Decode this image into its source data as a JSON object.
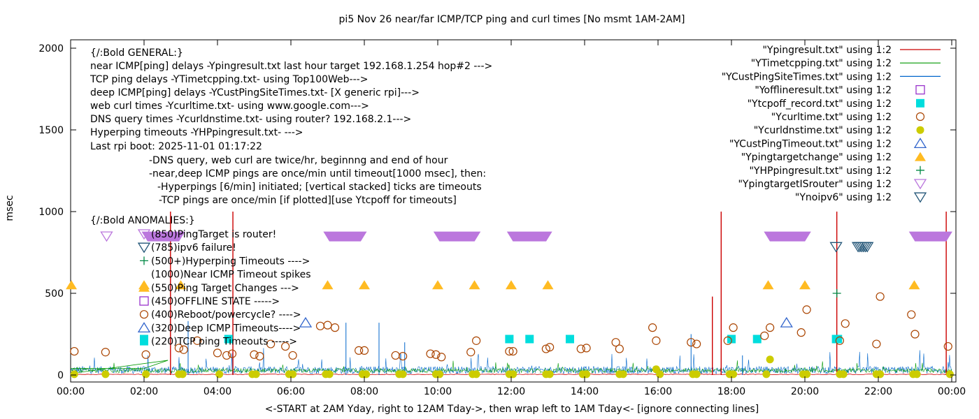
{
  "chart_data": {
    "type": "line",
    "title": "pi5 Nov 26  near/far ICMP/TCP ping and curl times [No msmt 1AM-2AM]",
    "xlabel": "<-START at 2AM Yday, right to 12AM Tday->, then wrap left to 1AM Tday<- [ignore connecting lines]",
    "ylabel": "msec",
    "xlim": [
      0,
      24
    ],
    "ylim": [
      0,
      2050
    ],
    "x_ticks": [
      "00:00",
      "02:00",
      "04:00",
      "06:00",
      "08:00",
      "10:00",
      "12:00",
      "14:00",
      "16:00",
      "18:00",
      "20:00",
      "22:00",
      "00:00"
    ],
    "y_ticks": [
      "0",
      "500",
      "1000",
      "1500",
      "2000"
    ],
    "grid": false,
    "legend_position": "top-right",
    "legend": [
      {
        "label": "\"Ypingresult.txt\" using 1:2",
        "kind": "line",
        "color": "#cc0000"
      },
      {
        "label": "\"YTimetcpping.txt\" using 1:2",
        "kind": "line",
        "color": "#009900"
      },
      {
        "label": "\"YCustPingSiteTimes.txt\" using 1:2",
        "kind": "line",
        "color": "#0066cc"
      },
      {
        "label": "\"Yofflineresult.txt\" using 1:2",
        "kind": "open-square",
        "color": "#9933cc"
      },
      {
        "label": "\"Ytcpoff_record.txt\" using 1:2",
        "kind": "filled-square",
        "color": "#00dddd"
      },
      {
        "label": "\"Ycurltime.txt\" using 1:2",
        "kind": "open-circle",
        "color": "#aa4400"
      },
      {
        "label": "\"Ycurldnstime.txt\" using 1:2",
        "kind": "filled-circle",
        "color": "#cccc00"
      },
      {
        "label": "\"YCustPingTimeout.txt\" using 1:2",
        "kind": "open-triangle-up",
        "color": "#3366cc"
      },
      {
        "label": "\"Ypingtargetchange\" using 1:2",
        "kind": "filled-triangle-up",
        "color": "#ffbb22"
      },
      {
        "label": "\"YHPpingresult.txt\" using 1:2",
        "kind": "plus",
        "color": "#008844"
      },
      {
        "label": "\"YpingtargetISrouter\" using 1:2",
        "kind": "open-triangle-down",
        "color": "#bb77dd"
      },
      {
        "label": "\"Ynoipv6\" using 1:2",
        "kind": "open-triangle-down",
        "color": "#225577"
      }
    ],
    "notes": [
      "{/:Bold GENERAL:}",
      "near ICMP[ping] delays -Ypingresult.txt last hour target 192.168.1.254 hop#2 --->",
      "TCP ping delays -YTimetcpping.txt- using Top100Web--->",
      "deep ICMP[ping] delays -YCustPingSiteTimes.txt- [X generic rpi]--->",
      "web curl times -Ycurltime.txt- using www.google.com--->",
      "DNS query times -Ycurldnstime.txt- using router? 192.168.2.1--->",
      "Hyperping timeouts -YHPpingresult.txt- --->",
      "Last rpi boot: 2025-11-01 01:17:22",
      "-DNS query, web curl are twice/hr, beginnng and end of hour",
      "-near,deep ICMP pings are once/min until timeout[1000 msec], then:",
      "-Hyperpings [6/min] initiated; [vertical stacked] ticks are timeouts",
      "-TCP pings are once/min [if plotted][use Ytcpoff for timeouts]",
      "{/:Bold ANOMALIES:}"
    ],
    "anomaly_keys": [
      {
        "symbol": "open-triangle-down",
        "color": "#bb77dd",
        "text": "(850)PingTarget is router!"
      },
      {
        "symbol": "open-triangle-down",
        "color": "#225577",
        "text": "(785)ipv6 failure!"
      },
      {
        "symbol": "plus",
        "color": "#008844",
        "text": "(500+)Hyperping Timeouts ---->"
      },
      {
        "symbol": "none",
        "color": "",
        "text": "(1000)Near ICMP Timeout spikes"
      },
      {
        "symbol": "filled-triangle-up",
        "color": "#ffbb22",
        "text": "(550)Ping Target Changes --->"
      },
      {
        "symbol": "open-square",
        "color": "#9933cc",
        "text": "(450)OFFLINE STATE ----->"
      },
      {
        "symbol": "open-circle",
        "color": "#aa4400",
        "text": "(400)Reboot/powercycle? ---->"
      },
      {
        "symbol": "open-triangle-up",
        "color": "#3366cc",
        "text": "(320)Deep ICMP Timeouts---->"
      },
      {
        "symbol": "filled-square",
        "color": "#00dddd",
        "text": "(220)TCP ping Timeouts ----->"
      }
    ],
    "series": [
      {
        "name": "\"Ypingresult.txt\" using 1:2",
        "kind": "spikes",
        "color": "#cc0000",
        "x": [
          2.72,
          4.42,
          17.48,
          17.72,
          20.87,
          23.85
        ],
        "y": [
          1000,
          1000,
          480,
          1000,
          1000,
          1000
        ]
      },
      {
        "name": "\"YCustPingTimeout.txt\" using 1:2",
        "kind": "open-triangle-up",
        "color": "#3366cc",
        "x": [
          6.4,
          19.5
        ],
        "y": [
          320,
          320
        ]
      },
      {
        "name": "\"Ypingtargetchange\" using 1:2",
        "kind": "filled-triangle-up",
        "color": "#ffbb22",
        "x": [
          0.02,
          2.0,
          3.0,
          7.0,
          8.0,
          10.0,
          11.0,
          12.0,
          13.0,
          19.0,
          20.0,
          22.98
        ],
        "y": [
          550,
          550,
          550,
          550,
          550,
          550,
          550,
          550,
          550,
          550,
          550,
          550
        ]
      },
      {
        "name": "\"Ytcpoff_record.txt\" using 1:2",
        "kind": "filled-square",
        "color": "#00dddd",
        "x": [
          2.0,
          4.3,
          11.95,
          12.5,
          13.6,
          18.0,
          18.7,
          20.85,
          20.9
        ],
        "y": [
          220,
          220,
          220,
          220,
          220,
          220,
          220,
          220,
          220
        ]
      },
      {
        "name": "\"Ycurltime.txt\" using 1:2",
        "kind": "open-circle",
        "color": "#aa4400",
        "x": [
          0.1,
          0.95,
          2.05,
          2.95,
          3.08,
          3.45,
          4.0,
          4.25,
          4.4,
          5.0,
          5.15,
          5.45,
          5.85,
          6.05,
          6.8,
          7.0,
          7.2,
          7.85,
          8.0,
          8.85,
          9.05,
          9.8,
          9.95,
          10.1,
          10.9,
          11.05,
          11.95,
          12.05,
          12.95,
          13.05,
          13.9,
          14.05,
          14.85,
          14.95,
          15.85,
          15.95,
          16.9,
          17.05,
          17.9,
          18.05,
          18.9,
          19.05,
          19.9,
          20.05,
          20.95,
          21.1,
          21.95,
          22.05,
          22.9,
          23.0,
          23.9
        ],
        "y": [
          145,
          140,
          125,
          165,
          155,
          210,
          135,
          120,
          130,
          125,
          115,
          190,
          175,
          120,
          300,
          305,
          290,
          150,
          150,
          120,
          115,
          130,
          125,
          110,
          140,
          210,
          145,
          145,
          160,
          170,
          160,
          165,
          200,
          160,
          290,
          210,
          200,
          190,
          210,
          290,
          240,
          290,
          260,
          400,
          210,
          315,
          190,
          480,
          370,
          250,
          175
        ]
      },
      {
        "name": "\"Ycurldnstime.txt\" using 1:2",
        "kind": "filled-circle",
        "color": "#cccc00",
        "x": [
          0.1,
          0.95,
          2.05,
          2.95,
          3.05,
          4.05,
          4.95,
          5.05,
          5.95,
          6.05,
          6.95,
          7.05,
          7.95,
          8.05,
          8.95,
          9.05,
          9.95,
          10.05,
          10.95,
          11.05,
          11.95,
          12.05,
          12.95,
          13.05,
          13.95,
          14.05,
          14.95,
          15.05,
          15.95,
          16.05,
          16.95,
          17.05,
          17.95,
          18.05,
          18.95,
          19.05,
          19.95,
          20.05,
          20.95,
          21.05,
          21.95,
          22.05,
          22.95,
          23.05,
          23.95
        ],
        "y": [
          5,
          5,
          5,
          5,
          5,
          5,
          5,
          5,
          5,
          5,
          5,
          5,
          5,
          5,
          5,
          5,
          5,
          5,
          5,
          5,
          5,
          5,
          5,
          5,
          5,
          5,
          5,
          5,
          35,
          5,
          5,
          5,
          5,
          5,
          5,
          95,
          5,
          5,
          5,
          5,
          5,
          5,
          5,
          5,
          5
        ]
      },
      {
        "name": "\"YpingtargetISrouter\" using 1:2",
        "kind": "open-triangle-down",
        "color": "#bb77dd",
        "x": [
          0.98
        ],
        "y": [
          850
        ],
        "bands": [
          [
            1.95,
            3.1
          ],
          [
            6.9,
            8.05
          ],
          [
            9.9,
            11.15
          ],
          [
            11.9,
            13.1
          ],
          [
            18.9,
            20.15
          ],
          [
            22.85,
            24.0
          ]
        ]
      },
      {
        "name": "\"Ynoipv6\" using 1:2",
        "kind": "open-triangle-down",
        "color": "#225577",
        "x": [
          20.85,
          21.45,
          21.5,
          21.55,
          21.6,
          21.65,
          21.7
        ],
        "y": [
          785,
          785,
          785,
          785,
          785,
          785,
          785
        ]
      },
      {
        "name": "\"YHPpingresult.txt\" using 1:2",
        "kind": "plus",
        "color": "#008844",
        "x": [
          20.87
        ],
        "y": [
          500
        ]
      }
    ]
  }
}
